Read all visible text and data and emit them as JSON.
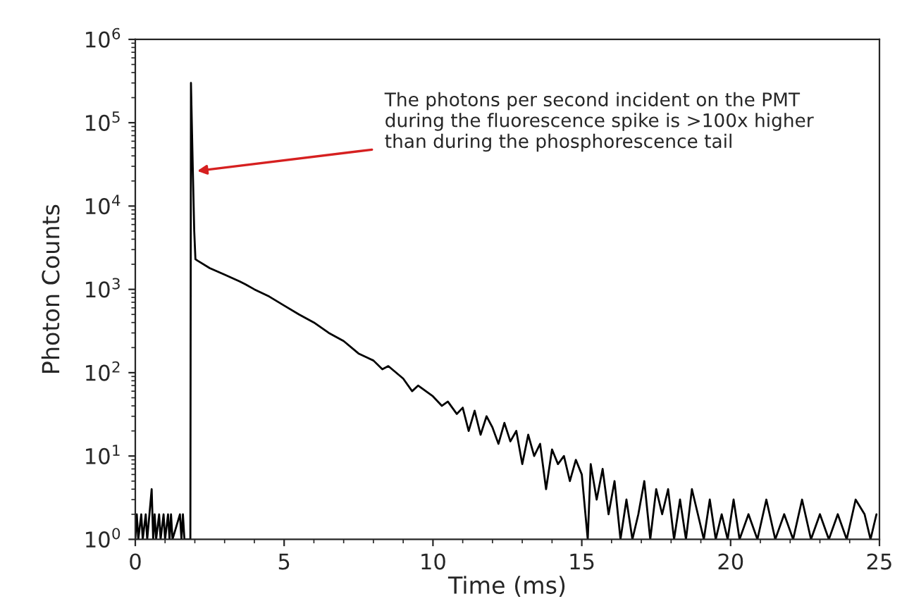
{
  "chart_data": {
    "type": "line",
    "xlabel": "Time (ms)",
    "ylabel": "Photon Counts",
    "log": "y",
    "xlim": [
      0,
      25
    ],
    "xticks": [
      0,
      5,
      10,
      15,
      20,
      25
    ],
    "ylim": [
      1,
      1000000
    ],
    "yticks": [
      {
        "value": 1,
        "label": "10$^{0}$"
      },
      {
        "value": 10,
        "label": "10$^{1}$"
      },
      {
        "value": 100,
        "label": "10$^{2}$"
      },
      {
        "value": 1000,
        "label": "10$^{3}$"
      },
      {
        "value": 10000,
        "label": "10$^{4}$"
      },
      {
        "value": 100000,
        "label": "10$^{5}$"
      },
      {
        "value": 1000000,
        "label": "10$^{6}$"
      }
    ],
    "grid": false,
    "marker": "none",
    "line_style": "solid",
    "annotations": [
      {
        "text": "The photons per second incident on the PMT\nduring the fluorescence spike is >100x higher\nthan during the phosphorescence tail",
        "x": 1.95,
        "y": 26000
      }
    ],
    "series": [
      {
        "color": "#000000",
        "x": [
          0,
          0.05,
          0.1,
          0.2,
          0.25,
          0.35,
          0.4,
          0.55,
          0.6,
          0.65,
          0.7,
          0.8,
          0.85,
          0.95,
          1.0,
          1.1,
          1.15,
          1.2,
          1.25,
          1.5,
          1.55,
          1.6,
          1.65,
          1.85,
          1.87,
          1.93,
          1.98,
          2.02,
          2.1,
          2.5,
          3,
          3.5,
          3.7,
          4,
          4.5,
          5,
          5.5,
          6,
          6.5,
          7,
          7.5,
          8,
          8.3,
          8.5,
          9,
          9.3,
          9.5,
          10,
          10.3,
          10.5,
          10.8,
          11,
          11.2,
          11.4,
          11.6,
          11.8,
          12,
          12.2,
          12.4,
          12.6,
          12.8,
          13,
          13.2,
          13.4,
          13.6,
          13.8,
          14,
          14.2,
          14.4,
          14.6,
          14.8,
          15,
          15.2,
          15.3,
          15.5,
          15.7,
          15.9,
          16.1,
          16.3,
          16.5,
          16.7,
          16.9,
          17.1,
          17.3,
          17.5,
          17.7,
          17.9,
          18.1,
          18.3,
          18.5,
          18.7,
          18.9,
          19.1,
          19.3,
          19.5,
          19.7,
          19.9,
          20.1,
          20.3,
          20.6,
          20.9,
          21.2,
          21.5,
          21.8,
          22.1,
          22.4,
          22.7,
          23,
          23.3,
          23.6,
          23.9,
          24.2,
          24.5,
          24.7,
          24.9
        ],
        "values": [
          1,
          2,
          1,
          2,
          1,
          2,
          1,
          4,
          1,
          2,
          1,
          2,
          1,
          2,
          1,
          2,
          1,
          2,
          1,
          2,
          1,
          2,
          1,
          1,
          300000,
          30000,
          5000,
          2300,
          2200,
          1800,
          1500,
          1250,
          1150,
          1000,
          820,
          640,
          500,
          400,
          300,
          240,
          170,
          140,
          110,
          120,
          85,
          60,
          70,
          52,
          40,
          45,
          32,
          38,
          20,
          35,
          18,
          30,
          22,
          14,
          25,
          15,
          20,
          8,
          18,
          10,
          14,
          4,
          12,
          8,
          10,
          5,
          9,
          6,
          1,
          8,
          3,
          7,
          2,
          5,
          1,
          3,
          1,
          2,
          5,
          1,
          4,
          2,
          4,
          1,
          3,
          1,
          4,
          2,
          1,
          3,
          1,
          2,
          1,
          3,
          1,
          2,
          1,
          3,
          1,
          2,
          1,
          3,
          1,
          2,
          1,
          2,
          1,
          3,
          2,
          1,
          2
        ]
      }
    ]
  }
}
